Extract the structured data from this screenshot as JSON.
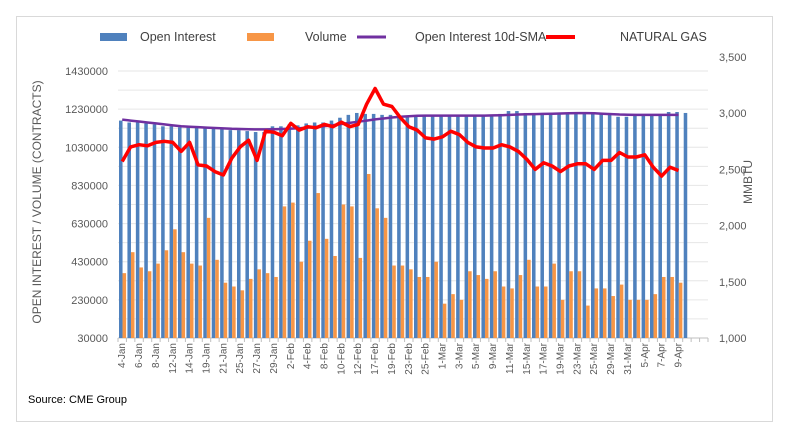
{
  "chart_data": {
    "type": "bar",
    "title": "",
    "legend": {
      "placement": "top",
      "items": [
        {
          "name": "Open Interest",
          "type": "bar",
          "color": "#4F81BD"
        },
        {
          "name": "Volume",
          "type": "bar",
          "color": "#F79646"
        },
        {
          "name": "Open Interest 10d-SMA",
          "type": "line",
          "color": "#7030A0"
        },
        {
          "name": "NATURAL GAS",
          "type": "line",
          "color": "#FF0000"
        }
      ]
    },
    "left_axis": {
      "label": "OPEN INTEREST / VOLUME (CONTRACTS)",
      "min": 30000,
      "max": 1430000,
      "step": 200000,
      "ticks": [
        "1430000",
        "1230000",
        "1030000",
        "830000",
        "630000",
        "430000",
        "230000",
        "30000"
      ]
    },
    "right_axis": {
      "label": "MMBTU",
      "min": 1000,
      "max": 3500,
      "step": 500,
      "ticks": [
        "3,500",
        "3,000",
        "2,500",
        "2,000",
        "1,500",
        "1,000"
      ]
    },
    "x_tick_labels": [
      "4-Jan",
      "6-Jan",
      "8-Jan",
      "12-Jan",
      "14-Jan",
      "19-Jan",
      "21-Jan",
      "25-Jan",
      "27-Jan",
      "29-Jan",
      "2-Feb",
      "4-Feb",
      "8-Feb",
      "10-Feb",
      "12-Feb",
      "17-Feb",
      "19-Feb",
      "23-Feb",
      "25-Feb",
      "1-Mar",
      "3-Mar",
      "5-Mar",
      "9-Mar",
      "11-Mar",
      "15-Mar",
      "17-Mar",
      "19-Mar",
      "23-Mar",
      "25-Mar",
      "29-Mar",
      "31-Mar",
      "5-Apr",
      "7-Apr",
      "9-Apr"
    ],
    "n_categories": 68,
    "grid": true,
    "series": [
      {
        "name": "Open Interest",
        "axis": "left",
        "values": [
          1170000,
          1160000,
          1160000,
          1155000,
          1150000,
          1140000,
          1140000,
          1135000,
          1140000,
          1140000,
          1130000,
          1130000,
          1125000,
          1120000,
          1120000,
          1115000,
          1110000,
          1110000,
          1140000,
          1140000,
          1150000,
          1145000,
          1155000,
          1160000,
          1160000,
          1170000,
          1185000,
          1200000,
          1210000,
          1205000,
          1205000,
          1200000,
          1200000,
          1195000,
          1195000,
          1195000,
          1195000,
          1195000,
          1195000,
          1195000,
          1195000,
          1195000,
          1195000,
          1195000,
          1200000,
          1205000,
          1220000,
          1220000,
          1210000,
          1210000,
          1210000,
          1210000,
          1210000,
          1210000,
          1210000,
          1210000,
          1210000,
          1210000,
          1210000,
          1190000,
          1190000,
          1195000,
          1200000,
          1200000,
          1200000,
          1215000,
          1215000,
          1210000
        ]
      },
      {
        "name": "Volume",
        "axis": "left",
        "values": [
          370000,
          480000,
          400000,
          380000,
          420000,
          490000,
          600000,
          480000,
          420000,
          410000,
          660000,
          440000,
          320000,
          300000,
          280000,
          340000,
          390000,
          370000,
          350000,
          720000,
          740000,
          430000,
          540000,
          790000,
          550000,
          460000,
          730000,
          720000,
          450000,
          890000,
          710000,
          660000,
          410000,
          410000,
          390000,
          350000,
          350000,
          430000,
          210000,
          260000,
          230000,
          380000,
          360000,
          340000,
          380000,
          300000,
          290000,
          360000,
          440000,
          300000,
          300000,
          420000,
          230000,
          380000,
          380000,
          200000,
          290000,
          290000,
          250000,
          310000,
          230000,
          230000,
          230000,
          260000,
          350000,
          350000,
          320000,
          0
        ]
      },
      {
        "name": "Open Interest 10d-SMA",
        "axis": "left",
        "values": [
          1175000,
          1170000,
          1165000,
          1160000,
          1155000,
          1150000,
          1145000,
          1140000,
          1138000,
          1136000,
          1133000,
          1131000,
          1129000,
          1127000,
          1126000,
          1125000,
          1124000,
          1124000,
          1125000,
          1126000,
          1128000,
          1130000,
          1133000,
          1137000,
          1141000,
          1146000,
          1152000,
          1158000,
          1164000,
          1170000,
          1176000,
          1181000,
          1186000,
          1190000,
          1193000,
          1195000,
          1196000,
          1196000,
          1196000,
          1196000,
          1196000,
          1196000,
          1196000,
          1196000,
          1197000,
          1198000,
          1200000,
          1202000,
          1203000,
          1204000,
          1205000,
          1206000,
          1207000,
          1208000,
          1209000,
          1209000,
          1208000,
          1206000,
          1204000,
          1202000,
          1201000,
          1200000,
          1200000,
          1200000,
          1200000,
          1200000,
          1200000,
          null
        ]
      },
      {
        "name": "NATURAL GAS",
        "axis": "right",
        "values": [
          2570,
          2700,
          2720,
          2710,
          2740,
          2750,
          2740,
          2660,
          2740,
          2540,
          2530,
          2480,
          2450,
          2600,
          2700,
          2760,
          2580,
          2840,
          2830,
          2800,
          2910,
          2850,
          2880,
          2870,
          2900,
          2880,
          2920,
          2880,
          2900,
          3080,
          3220,
          3080,
          3060,
          2960,
          2880,
          2850,
          2780,
          2770,
          2790,
          2840,
          2810,
          2740,
          2700,
          2690,
          2690,
          2720,
          2700,
          2660,
          2590,
          2500,
          2560,
          2530,
          2480,
          2530,
          2550,
          2550,
          2500,
          2580,
          2580,
          2650,
          2610,
          2610,
          2630,
          2520,
          2440,
          2520,
          2490,
          null
        ]
      }
    ]
  },
  "source": "Source: CME Group"
}
